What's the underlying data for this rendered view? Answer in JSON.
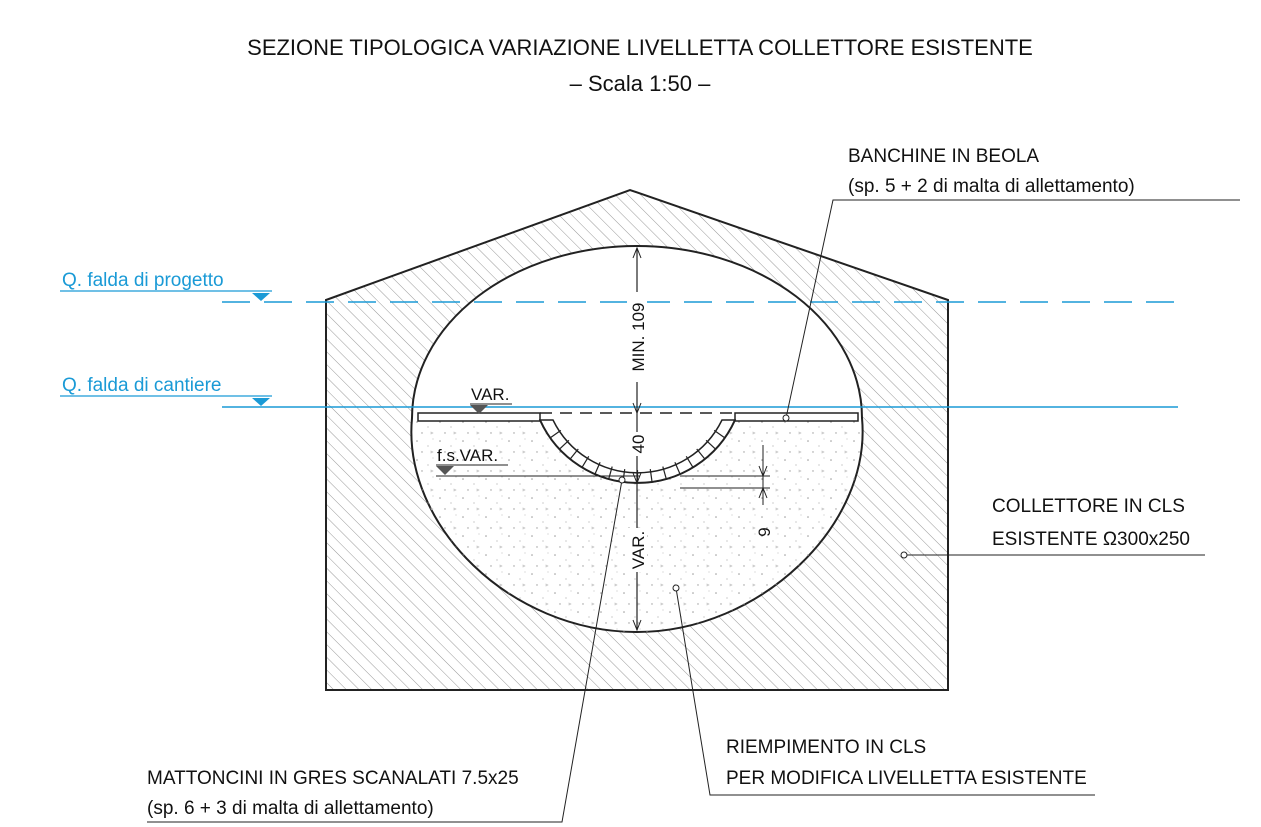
{
  "header": {
    "title": "SEZIONE TIPOLOGICA VARIAZIONE LIVELLETTA COLLETTORE ESISTENTE",
    "subtitle": "– Scala 1:50 –"
  },
  "labels": {
    "banchine_1": "BANCHINE IN BEOLA",
    "banchine_2": "(sp. 5 + 2 di malta di allettamento)",
    "falda_progetto": "Q. falda di progetto",
    "falda_cantiere": "Q. falda di cantiere",
    "var_level": "VAR.",
    "fs_var": "f.s.VAR.",
    "dim_min": "MIN. 109",
    "dim_40": "40",
    "dim_var": "VAR.",
    "dim_9": "9",
    "collettore_1": "COLLETTORE IN CLS",
    "collettore_2": "ESISTENTE Ω300x250",
    "riempimento_1": "RIEMPIMENTO IN CLS",
    "riempimento_2": "PER MODIFICA LIVELLETTA ESISTENTE",
    "mattoncini_1": "MATTONCINI IN GRES SCANALATI 7.5x25",
    "mattoncini_2": "(sp. 6 + 3 di malta di allettamento)"
  }
}
